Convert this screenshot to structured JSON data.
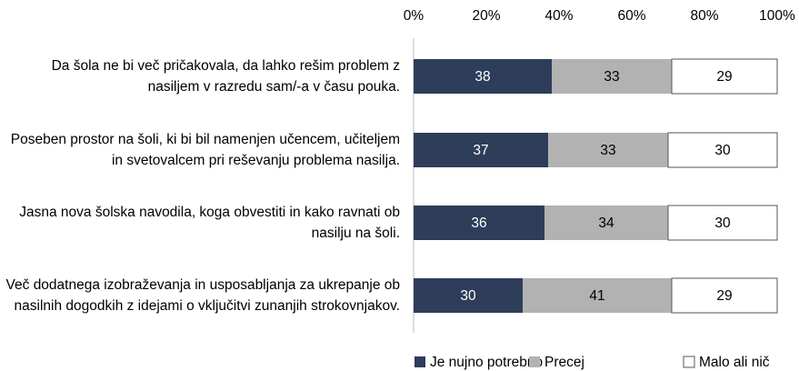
{
  "chart_data": {
    "type": "bar",
    "orientation": "horizontal",
    "stacked": true,
    "categories": [
      "Da šola ne bi več pričakovala, da lahko rešim problem z nasiljem v razredu sam/-a v času pouka.",
      "Poseben prostor na šoli, ki bi bil namenjen učencem, učiteljem in svetovalcem pri reševanju problema nasilja.",
      "Jasna nova šolska navodila, koga obvestiti in kako ravnati ob nasilju na šoli.",
      "Več dodatnega izobraževanja in usposabljanja za ukrepanje ob nasilnih dogodkih z idejami o vključitvi zunanjih strokovnjakov."
    ],
    "series": [
      {
        "name": "Je nujno potrebno",
        "color": "#2e3d5a",
        "values": [
          38,
          37,
          36,
          30
        ]
      },
      {
        "name": "Precej",
        "color": "#b2b2b2",
        "values": [
          33,
          33,
          34,
          41
        ]
      },
      {
        "name": "Malo ali nič",
        "color": "#ffffff",
        "values": [
          29,
          30,
          30,
          29
        ]
      }
    ],
    "xlim": [
      0,
      100
    ],
    "xticks": [
      {
        "value": 0,
        "label": "0%"
      },
      {
        "value": 20,
        "label": "20%"
      },
      {
        "value": 40,
        "label": "40%"
      },
      {
        "value": 60,
        "label": "60%"
      },
      {
        "value": 80,
        "label": "80%"
      },
      {
        "value": 100,
        "label": "100%"
      }
    ],
    "legend": "bottom"
  }
}
